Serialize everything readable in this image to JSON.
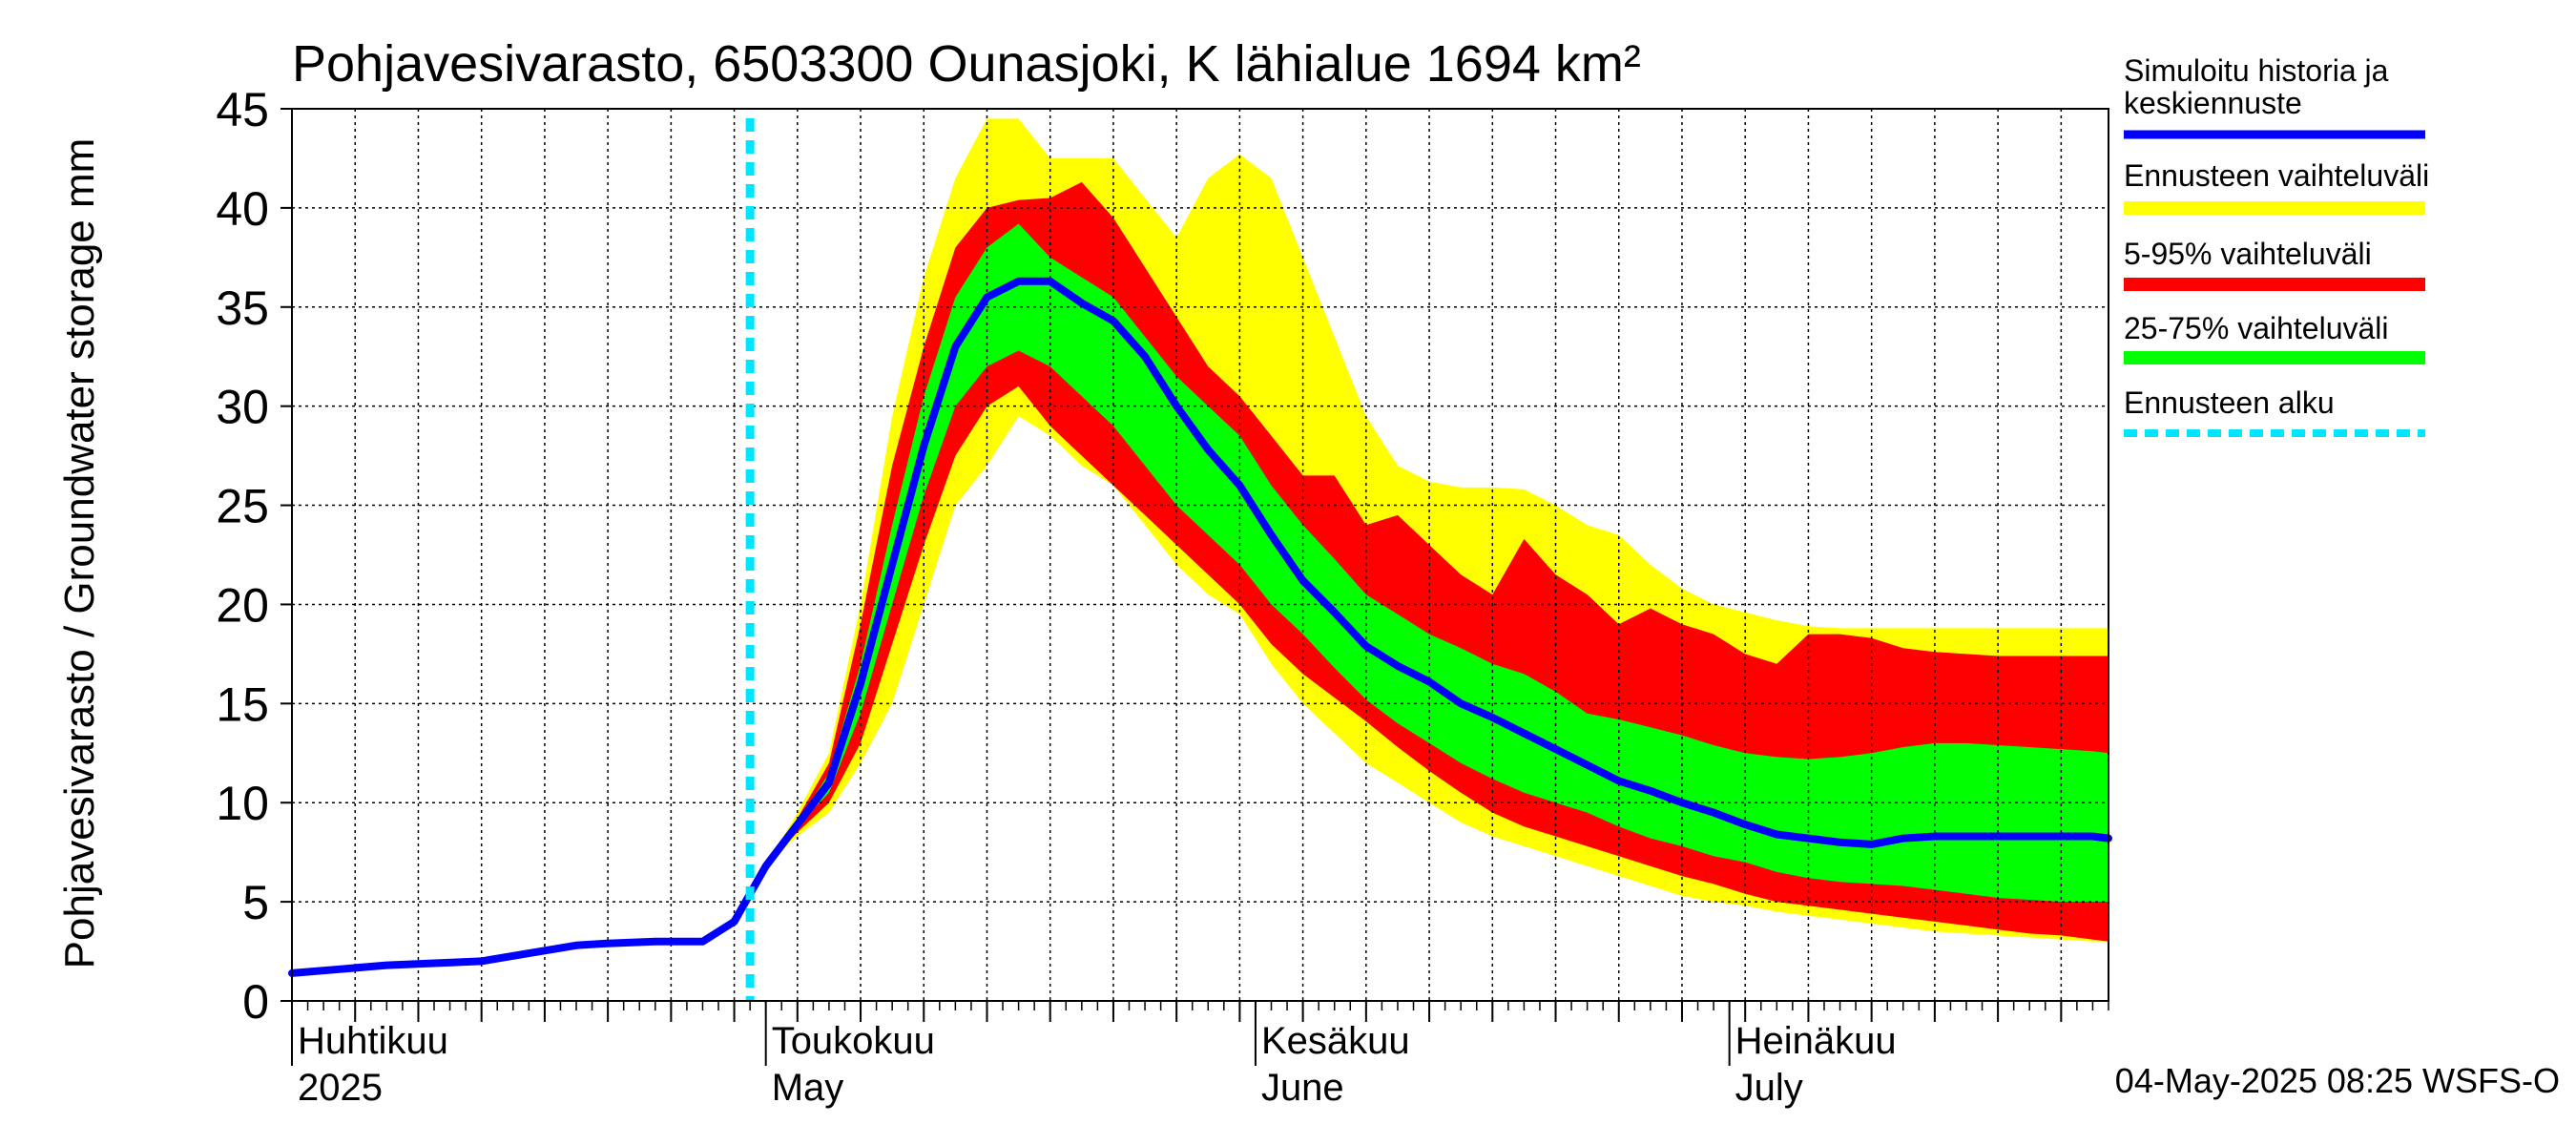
{
  "chart_data": {
    "type": "area",
    "title": "Pohjavesivarasto, 6503300 Ounasjoki, K lähialue 1694 km²",
    "ylabel": "Pohjavesivarasto / Groundwater storage   mm",
    "ylim": [
      0,
      45
    ],
    "yticks": [
      0,
      5,
      10,
      15,
      20,
      25,
      30,
      35,
      40,
      45
    ],
    "xlim": [
      0,
      115
    ],
    "x_unit": "days since 1 April 2025",
    "grid": true,
    "month_labels": [
      {
        "x": 0,
        "fi": "Huhtikuu",
        "en": "2025"
      },
      {
        "x": 30,
        "fi": "Toukokuu",
        "en": "May"
      },
      {
        "x": 61,
        "fi": "Kesäkuu",
        "en": "June"
      },
      {
        "x": 91,
        "fi": "Heinäkuu",
        "en": "July"
      }
    ],
    "forecast_start_x": 29,
    "footer": "04-May-2025 08:25 WSFS-O",
    "legend": [
      {
        "id": "median",
        "label": "Simuloitu historia ja keskiennuste",
        "color": "#0000ff",
        "style": "solid"
      },
      {
        "id": "range_full",
        "label": "Ennusteen vaihteluväli",
        "color": "#ffff00",
        "style": "solid"
      },
      {
        "id": "range_5_95",
        "label": "5-95% vaihteluväli",
        "color": "#ff0000",
        "style": "solid"
      },
      {
        "id": "range_25_75",
        "label": "25-75% vaihteluväli",
        "color": "#00ff00",
        "style": "solid"
      },
      {
        "id": "forecast_start",
        "label": "Ennusteen alku",
        "color": "#00e5ff",
        "style": "dashed"
      }
    ],
    "history": {
      "x": [
        0,
        3,
        6,
        9,
        12,
        15,
        18,
        20,
        23,
        26,
        28
      ],
      "y": [
        1.4,
        1.6,
        1.8,
        1.9,
        2.0,
        2.4,
        2.8,
        2.9,
        3.0,
        3.0,
        4.0
      ]
    },
    "forecast": {
      "x": [
        28,
        30,
        32,
        34,
        36,
        38,
        40,
        42,
        44,
        46,
        48,
        50,
        52,
        54,
        56,
        58,
        60,
        62,
        64,
        66,
        68,
        70,
        72,
        74,
        76,
        78,
        80,
        82,
        84,
        86,
        88,
        90,
        92,
        94,
        96,
        98,
        100,
        102,
        104,
        106,
        108,
        110,
        112,
        114,
        115
      ],
      "median": [
        4.0,
        6.8,
        8.9,
        11.0,
        16.0,
        22.0,
        28.0,
        33.0,
        35.5,
        36.3,
        36.3,
        35.2,
        34.3,
        32.5,
        30.0,
        27.8,
        26.0,
        23.5,
        21.2,
        19.6,
        17.9,
        16.9,
        16.1,
        15.0,
        14.3,
        13.5,
        12.7,
        11.9,
        11.1,
        10.6,
        10.0,
        9.5,
        8.9,
        8.4,
        8.2,
        8.0,
        7.9,
        8.2,
        8.3,
        8.3,
        8.3,
        8.3,
        8.3,
        8.3,
        8.2
      ],
      "p25": [
        4.0,
        6.8,
        8.8,
        10.5,
        14.5,
        20.0,
        25.5,
        30.0,
        32.0,
        32.8,
        32.0,
        30.5,
        29.0,
        27.0,
        25.0,
        23.5,
        22.0,
        20.0,
        18.5,
        16.8,
        15.2,
        14.0,
        13.0,
        12.0,
        11.2,
        10.5,
        10.0,
        9.5,
        8.8,
        8.2,
        7.8,
        7.3,
        7.0,
        6.5,
        6.2,
        6.0,
        5.9,
        5.8,
        5.6,
        5.4,
        5.2,
        5.1,
        5.0,
        5.0,
        5.0
      ],
      "p75": [
        4.0,
        6.8,
        9.0,
        11.5,
        17.0,
        24.0,
        30.5,
        35.5,
        38.0,
        39.2,
        37.5,
        36.5,
        35.5,
        33.5,
        31.5,
        30.0,
        28.5,
        26.0,
        24.0,
        22.3,
        20.5,
        19.5,
        18.5,
        17.8,
        17.0,
        16.5,
        15.6,
        14.5,
        14.2,
        13.8,
        13.4,
        12.9,
        12.5,
        12.3,
        12.2,
        12.3,
        12.5,
        12.8,
        13.0,
        13.0,
        12.9,
        12.8,
        12.7,
        12.6,
        12.5
      ],
      "p5": [
        4.0,
        6.8,
        8.5,
        10.0,
        13.0,
        18.0,
        23.0,
        27.5,
        30.0,
        31.0,
        29.0,
        27.5,
        26.0,
        24.5,
        23.0,
        21.5,
        20.0,
        18.0,
        16.5,
        15.3,
        14.1,
        12.8,
        11.6,
        10.5,
        9.5,
        8.8,
        8.3,
        7.8,
        7.3,
        6.8,
        6.3,
        5.9,
        5.4,
        5.0,
        4.8,
        4.6,
        4.4,
        4.2,
        4.0,
        3.8,
        3.6,
        3.4,
        3.3,
        3.1,
        3.0
      ],
      "p95": [
        4.0,
        6.8,
        9.2,
        12.0,
        19.0,
        27.0,
        33.0,
        38.0,
        40.0,
        40.4,
        40.5,
        41.3,
        39.5,
        37.0,
        34.5,
        32.0,
        30.5,
        28.5,
        26.5,
        26.5,
        24.0,
        24.5,
        23.0,
        21.5,
        20.5,
        23.3,
        21.5,
        20.5,
        19.0,
        19.8,
        19.0,
        18.5,
        17.5,
        17.0,
        18.5,
        18.5,
        18.3,
        17.8,
        17.6,
        17.5,
        17.4,
        17.4,
        17.4,
        17.4,
        17.4
      ],
      "min": [
        4.0,
        6.8,
        8.3,
        9.5,
        12.0,
        15.0,
        20.0,
        25.0,
        27.0,
        29.5,
        28.5,
        27.0,
        26.0,
        24.0,
        22.0,
        20.5,
        19.5,
        17.0,
        15.0,
        13.5,
        12.0,
        11.0,
        10.0,
        9.0,
        8.3,
        7.8,
        7.3,
        6.8,
        6.3,
        5.8,
        5.3,
        5.0,
        4.8,
        4.5,
        4.3,
        4.1,
        3.9,
        3.7,
        3.5,
        3.4,
        3.3,
        3.2,
        3.1,
        3.0,
        3.0
      ],
      "max": [
        4.0,
        6.8,
        9.5,
        12.5,
        20.0,
        29.5,
        36.5,
        41.5,
        44.5,
        44.5,
        42.5,
        42.5,
        42.5,
        40.5,
        38.5,
        41.5,
        42.7,
        41.5,
        37.5,
        33.5,
        29.5,
        27.0,
        26.2,
        25.9,
        25.9,
        25.8,
        25.0,
        24.0,
        23.5,
        22.0,
        20.8,
        20.0,
        19.6,
        19.2,
        18.9,
        18.8,
        18.8,
        18.8,
        18.8,
        18.8,
        18.8,
        18.8,
        18.8,
        18.8,
        18.8
      ]
    }
  }
}
